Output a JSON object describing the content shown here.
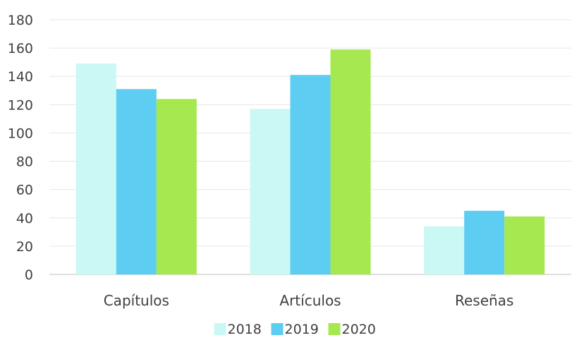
{
  "chart_data": {
    "type": "bar",
    "categories": [
      "Capítulos",
      "Artículos",
      "Reseñas"
    ],
    "series": [
      {
        "name": "2018",
        "values": [
          149,
          117,
          34
        ],
        "color": "#c9f8f5"
      },
      {
        "name": "2019",
        "values": [
          131,
          141,
          45
        ],
        "color": "#5dcdf1"
      },
      {
        "name": "2020",
        "values": [
          124,
          159,
          41
        ],
        "color": "#a6e850"
      }
    ],
    "ylim": [
      0,
      180
    ],
    "yticks": [
      "0",
      "20",
      "40",
      "60",
      "80",
      "100",
      "120",
      "140",
      "160",
      "180"
    ],
    "grid": true,
    "legend_position": "bottom-center",
    "title": "",
    "xlabel": "",
    "ylabel": ""
  }
}
